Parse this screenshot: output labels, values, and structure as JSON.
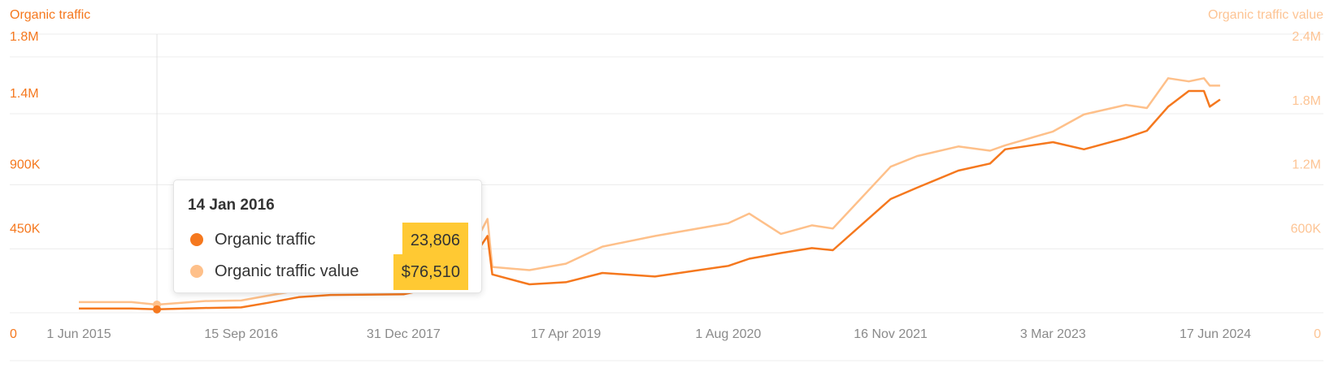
{
  "chart_data": {
    "type": "line",
    "left_axis": {
      "title": "Organic traffic",
      "ticks": [
        "0",
        "450K",
        "900K",
        "1.4M",
        "1.8M"
      ],
      "tick_values": [
        0,
        450000,
        900000,
        1400000,
        1800000
      ],
      "ylim": [
        0,
        1800000
      ]
    },
    "right_axis": {
      "title": "Organic traffic value",
      "ticks": [
        "0",
        "600K",
        "1.2M",
        "1.8M",
        "2.4M"
      ],
      "tick_values": [
        0,
        600000,
        1200000,
        1800000,
        2400000
      ],
      "ylim": [
        0,
        2400000
      ]
    },
    "x_ticks": [
      "1 Jun 2015",
      "15 Sep 2016",
      "31 Dec 2017",
      "17 Apr 2019",
      "1 Aug 2020",
      "16 Nov 2021",
      "3 Mar 2023",
      "17 Jun 2024"
    ],
    "x_tick_dates": [
      "2015-06-01",
      "2016-09-15",
      "2017-12-31",
      "2019-04-17",
      "2020-08-01",
      "2021-11-16",
      "2023-03-03",
      "2024-06-17"
    ],
    "grid": true,
    "colors": {
      "traffic": "#f5781e",
      "value": "#fec08a",
      "axis_text_left": "#f5781e",
      "axis_text_right": "#fdc494",
      "highlight": "#ffc933"
    },
    "series": [
      {
        "name": "Organic traffic",
        "axis": "left",
        "points": [
          [
            "2015-06-01",
            30000
          ],
          [
            "2015-11-01",
            30000
          ],
          [
            "2016-01-14",
            23806
          ],
          [
            "2016-06-01",
            34000
          ],
          [
            "2016-09-15",
            38000
          ],
          [
            "2016-12-01",
            70000
          ],
          [
            "2017-03-01",
            110000
          ],
          [
            "2017-06-01",
            125000
          ],
          [
            "2017-12-31",
            130000
          ],
          [
            "2018-06-01",
            210000
          ],
          [
            "2018-09-01",
            540000
          ],
          [
            "2018-09-15",
            270000
          ],
          [
            "2019-01-01",
            200000
          ],
          [
            "2019-04-17",
            215000
          ],
          [
            "2019-08-01",
            280000
          ],
          [
            "2020-01-01",
            255000
          ],
          [
            "2020-08-01",
            330000
          ],
          [
            "2020-10-01",
            380000
          ],
          [
            "2021-01-01",
            420000
          ],
          [
            "2021-04-01",
            455000
          ],
          [
            "2021-06-01",
            440000
          ],
          [
            "2021-11-16",
            800000
          ],
          [
            "2022-02-01",
            880000
          ],
          [
            "2022-06-01",
            1000000
          ],
          [
            "2022-09-01",
            1050000
          ],
          [
            "2022-10-15",
            1150000
          ],
          [
            "2023-03-03",
            1200000
          ],
          [
            "2023-06-01",
            1150000
          ],
          [
            "2023-10-01",
            1230000
          ],
          [
            "2023-12-01",
            1280000
          ],
          [
            "2024-02-01",
            1450000
          ],
          [
            "2024-04-01",
            1560000
          ],
          [
            "2024-05-15",
            1560000
          ],
          [
            "2024-06-01",
            1450000
          ],
          [
            "2024-07-01",
            1500000
          ]
        ]
      },
      {
        "name": "Organic traffic value",
        "axis": "right",
        "points": [
          [
            "2015-06-01",
            100000
          ],
          [
            "2015-11-01",
            100000
          ],
          [
            "2016-01-14",
            76510
          ],
          [
            "2016-06-01",
            110000
          ],
          [
            "2016-09-15",
            115000
          ],
          [
            "2016-12-01",
            160000
          ],
          [
            "2017-03-01",
            210000
          ],
          [
            "2017-06-01",
            240000
          ],
          [
            "2017-12-31",
            250000
          ],
          [
            "2018-06-01",
            310000
          ],
          [
            "2018-09-01",
            880000
          ],
          [
            "2018-09-15",
            430000
          ],
          [
            "2019-01-01",
            400000
          ],
          [
            "2019-04-17",
            460000
          ],
          [
            "2019-08-01",
            620000
          ],
          [
            "2020-01-01",
            720000
          ],
          [
            "2020-08-01",
            840000
          ],
          [
            "2020-10-01",
            930000
          ],
          [
            "2021-01-01",
            740000
          ],
          [
            "2021-04-01",
            820000
          ],
          [
            "2021-06-01",
            790000
          ],
          [
            "2021-11-16",
            1370000
          ],
          [
            "2022-02-01",
            1470000
          ],
          [
            "2022-06-01",
            1560000
          ],
          [
            "2022-09-01",
            1520000
          ],
          [
            "2022-10-15",
            1570000
          ],
          [
            "2023-03-03",
            1700000
          ],
          [
            "2023-06-01",
            1860000
          ],
          [
            "2023-10-01",
            1950000
          ],
          [
            "2023-12-01",
            1920000
          ],
          [
            "2024-02-01",
            2200000
          ],
          [
            "2024-04-01",
            2170000
          ],
          [
            "2024-05-15",
            2200000
          ],
          [
            "2024-06-01",
            2130000
          ],
          [
            "2024-07-01",
            2130000
          ]
        ]
      }
    ],
    "tooltip": {
      "date": "14 Jan 2016",
      "date_iso": "2016-01-14",
      "rows": [
        {
          "label": "Organic traffic",
          "value": "23,806"
        },
        {
          "label": "Organic traffic value",
          "value": "$76,510"
        }
      ]
    }
  }
}
